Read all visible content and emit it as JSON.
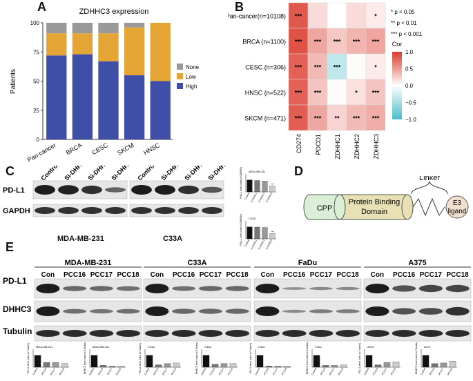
{
  "panels": {
    "A": {
      "letter": "A",
      "title": "ZDHHC3 expression",
      "ylabel": "Patients",
      "legend": [
        "None",
        "Low",
        "High"
      ],
      "colors": {
        "None": "#999999",
        "Low": "#E5A534",
        "High": "#3F4FA8"
      }
    },
    "B": {
      "letter": "B",
      "rows": [
        "Pan-cancer(n=10108)",
        "BRCA (n=1100)",
        "CESC (n=306)",
        "HNSC (n=522)",
        "SKCM (n=471)"
      ],
      "cols": [
        "CD274",
        "PDCD1",
        "ZDHHC1",
        "ZDHHC2",
        "ZDHHC3"
      ],
      "sig_notes": [
        "* p < 0.05",
        "** p < 0.01",
        "*** p < 0.001"
      ],
      "colorbar_title": "Cor",
      "colorbar_ticks": [
        "1.0",
        "0.5",
        "0.0",
        "−0.5",
        "−1.0"
      ]
    },
    "C": {
      "letter": "C",
      "lanes": [
        "Control",
        "Si-DHHC1",
        "Si-DHHC2",
        "Si-DHHC3"
      ],
      "proteins": [
        "PD-L1",
        "GAPDH"
      ],
      "cell_lines": [
        "MDA-MB-231",
        "C33A"
      ],
      "mini_titles": [
        "MDA-MB-231",
        "C33A"
      ],
      "mini_ylabel": "PD-L1 level (ratio to GAPDH)",
      "mini_x": [
        "Control",
        "si-DHHC1",
        "si-DHHC2",
        "si-DHHC3"
      ]
    },
    "D": {
      "letter": "D",
      "cpp": "CPP",
      "pbd_line1": "Protein Binding",
      "pbd_line2": "Domain",
      "linker": "Linker",
      "e3_line1": "E3",
      "e3_line2": "ligand"
    },
    "E": {
      "letter": "E",
      "cell_lines": [
        "MDA-MB-231",
        "C33A",
        "FaDu",
        "A375"
      ],
      "lanes": [
        "Con",
        "PCC16",
        "PCC17",
        "PCC18"
      ],
      "proteins": [
        "PD-L1",
        "DHHC3",
        "Tubulin"
      ],
      "mini_ylabel_pdl1": "PD-L1 level (ratio to Tubulin)",
      "mini_ylabel_dhhc3": "DHHC3 level (ratio to Tubulin)",
      "mini_x": [
        "Control",
        "PCC16",
        "PCC17",
        "PCC18"
      ]
    }
  },
  "chart_data": [
    {
      "type": "bar",
      "panel": "A",
      "title": "ZDHHC3 expression",
      "ylabel": "Patients",
      "categories": [
        "Pan-cancer",
        "BRCA",
        "CESC",
        "SKCM",
        "HNSC"
      ],
      "series": [
        {
          "name": "High",
          "values": [
            72,
            73,
            67,
            55,
            50
          ]
        },
        {
          "name": "Low",
          "values": [
            19,
            18,
            24,
            41,
            50
          ]
        },
        {
          "name": "None",
          "values": [
            9,
            9,
            9,
            4,
            0
          ]
        }
      ],
      "stacked": true,
      "ylim": [
        0,
        100
      ],
      "yticks": [
        0,
        25,
        50,
        75,
        100
      ],
      "legend_position": "right"
    },
    {
      "type": "heatmap",
      "panel": "B",
      "rows": [
        "Pan-cancer(n=10108)",
        "BRCA (n=1100)",
        "CESC (n=306)",
        "HNSC (n=522)",
        "SKCM (n=471)"
      ],
      "cols": [
        "CD274",
        "PDCD1",
        "ZDHHC1",
        "ZDHHC2",
        "ZDHHC3"
      ],
      "values": [
        [
          0.85,
          0.18,
          0.0,
          0.18,
          0.1
        ],
        [
          0.88,
          0.45,
          0.28,
          0.38,
          0.45
        ],
        [
          0.8,
          0.35,
          -0.35,
          0.02,
          0.1
        ],
        [
          0.8,
          0.3,
          0.02,
          0.15,
          0.3
        ],
        [
          0.82,
          0.45,
          0.22,
          0.35,
          0.42
        ]
      ],
      "labels": [
        [
          "***",
          "",
          "",
          "",
          "*"
        ],
        [
          "***",
          "***",
          "***",
          "***",
          "***"
        ],
        [
          "***",
          "***",
          "***",
          "",
          "*"
        ],
        [
          "***",
          "***",
          "",
          "*",
          "***"
        ],
        [
          "***",
          "***",
          "**",
          "***",
          "***"
        ]
      ],
      "color_range": [
        -1,
        1
      ]
    },
    {
      "type": "bar",
      "panel": "C",
      "title": "MDA-MB-231",
      "categories": [
        "Control",
        "si-DHHC1",
        "si-DHHC2",
        "si-DHHC3"
      ],
      "values": [
        1.0,
        0.95,
        0.9,
        0.5
      ],
      "ylim": [
        0,
        1.5
      ],
      "annotations": [
        "",
        "",
        "",
        "***"
      ]
    },
    {
      "type": "bar",
      "panel": "C",
      "title": "C33A",
      "categories": [
        "Control",
        "si-DHHC1",
        "si-DHHC2",
        "si-DHHC3"
      ],
      "values": [
        1.0,
        0.98,
        0.95,
        0.45
      ],
      "ylim": [
        0,
        1.5
      ],
      "annotations": [
        "",
        "",
        "",
        "***"
      ]
    },
    {
      "type": "bar",
      "panel": "E",
      "title": "MDA-MB-231",
      "protein": "PD-L1",
      "categories": [
        "Control",
        "PCC16",
        "PCC17",
        "PCC18"
      ],
      "values": [
        1.0,
        0.4,
        0.4,
        0.3
      ],
      "ylim": [
        0,
        1.5
      ]
    },
    {
      "type": "bar",
      "panel": "E",
      "title": "MDA-MB-231",
      "protein": "DHHC3",
      "categories": [
        "Control",
        "PCC16",
        "PCC17",
        "PCC18"
      ],
      "values": [
        1.0,
        0.15,
        0.1,
        0.1
      ],
      "ylim": [
        0,
        1.5
      ]
    },
    {
      "type": "bar",
      "panel": "E",
      "title": "C33A",
      "protein": "PD-L1",
      "categories": [
        "Control",
        "PCC16",
        "PCC17",
        "PCC18"
      ],
      "values": [
        1.0,
        0.2,
        0.3,
        0.35
      ],
      "ylim": [
        0,
        1.5
      ]
    },
    {
      "type": "bar",
      "panel": "E",
      "title": "C33A",
      "protein": "DHHC3",
      "categories": [
        "Control",
        "PCC16",
        "PCC17",
        "PCC18"
      ],
      "values": [
        1.0,
        0.25,
        0.3,
        0.3
      ],
      "ylim": [
        0,
        1.5
      ]
    },
    {
      "type": "bar",
      "panel": "E",
      "title": "FaDu",
      "protein": "PD-L1",
      "categories": [
        "Control",
        "PCC16",
        "PCC17",
        "PCC18"
      ],
      "values": [
        1.0,
        0.1,
        0.1,
        0.1
      ],
      "ylim": [
        0,
        1.5
      ]
    },
    {
      "type": "bar",
      "panel": "E",
      "title": "FaDu",
      "protein": "DHHC3",
      "categories": [
        "Control",
        "PCC16",
        "PCC17",
        "PCC18"
      ],
      "values": [
        1.0,
        0.15,
        0.15,
        0.2
      ],
      "ylim": [
        0,
        1.5
      ]
    },
    {
      "type": "bar",
      "panel": "E",
      "title": "A375",
      "protein": "PD-L1",
      "categories": [
        "Control",
        "PCC16",
        "PCC17",
        "PCC18"
      ],
      "values": [
        1.0,
        0.2,
        0.4,
        0.45
      ],
      "ylim": [
        0,
        1.5
      ]
    },
    {
      "type": "bar",
      "panel": "E",
      "title": "A375",
      "protein": "DHHC3",
      "categories": [
        "Control",
        "PCC16",
        "PCC17",
        "PCC18"
      ],
      "values": [
        1.0,
        0.3,
        0.35,
        0.5
      ],
      "ylim": [
        0,
        1.5
      ]
    }
  ]
}
